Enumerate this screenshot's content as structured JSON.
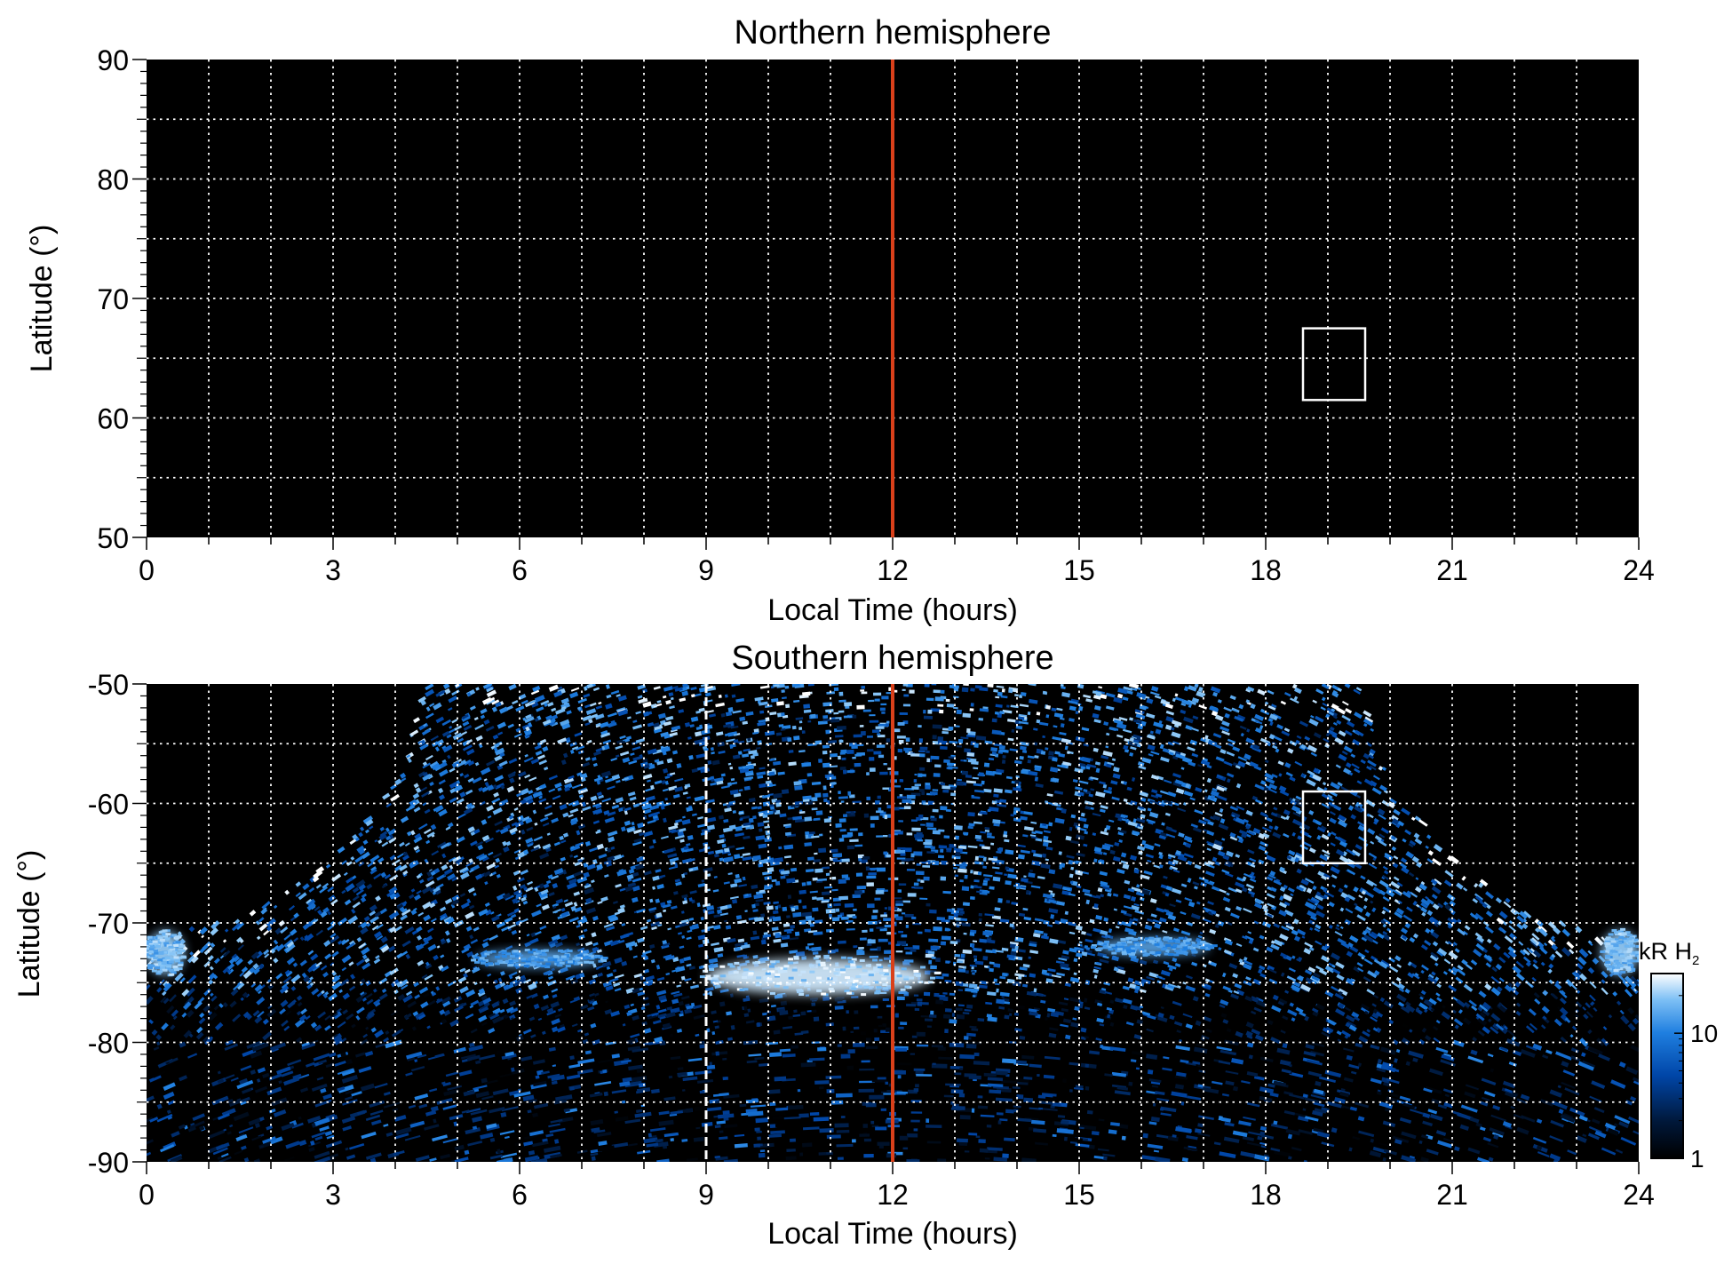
{
  "colors": {
    "background": "#000000",
    "grid": "#ffffff",
    "noon_line": "#d9401a",
    "roi_box": "#ffffff",
    "colormap": [
      "#000000",
      "#00183a",
      "#0046a8",
      "#1f7fe0",
      "#7ec0f5",
      "#ffffff"
    ]
  },
  "chart_data": [
    {
      "type": "heatmap",
      "title": "Northern hemisphere",
      "xlabel": "Local Time (hours)",
      "ylabel": "Latitude (°)",
      "xlim": [
        0,
        24
      ],
      "ylim": [
        50,
        90
      ],
      "x_ticks": [
        0,
        3,
        6,
        9,
        12,
        15,
        18,
        21,
        24
      ],
      "y_ticks": [
        50,
        60,
        70,
        80,
        90
      ],
      "grid": true,
      "grid_style": "dotted white, every 1 hour and every 5 degrees",
      "field": "empty (no emission)",
      "noon_line_x": 12,
      "roi_box": {
        "x": [
          18.6,
          19.6
        ],
        "y": [
          61.5,
          67.5
        ]
      }
    },
    {
      "type": "heatmap",
      "title": "Southern hemisphere",
      "xlabel": "Local Time (hours)",
      "ylabel": "Latitude (°)",
      "xlim": [
        0,
        24
      ],
      "ylim": [
        -90,
        -50
      ],
      "x_ticks": [
        0,
        3,
        6,
        9,
        12,
        15,
        18,
        21,
        24
      ],
      "y_ticks": [
        -50,
        -60,
        -70,
        -80,
        -90
      ],
      "grid": true,
      "grid_style": "dotted white, every 1 hour and every 5 degrees",
      "noon_line_x": 12,
      "dashed_line_x": 9,
      "roi_box": {
        "x": [
          18.6,
          19.6
        ],
        "y": [
          -65,
          -59
        ]
      },
      "coverage": {
        "description": "observed region bounded by curve; black (no data) above it",
        "boundary": [
          {
            "x": 0,
            "y": -71
          },
          {
            "x": 1,
            "y": -70.2
          },
          {
            "x": 2,
            "y": -68.2
          },
          {
            "x": 3,
            "y": -64.5
          },
          {
            "x": 4,
            "y": -58
          },
          {
            "x": 4.5,
            "y": -50
          },
          {
            "x": 19.5,
            "y": -50
          },
          {
            "x": 20,
            "y": -58
          },
          {
            "x": 21,
            "y": -64.5
          },
          {
            "x": 22,
            "y": -68.2
          },
          {
            "x": 23,
            "y": -70.2
          },
          {
            "x": 24,
            "y": -71
          }
        ]
      },
      "emission_features": [
        {
          "name": "bright oval",
          "x_center": 10.8,
          "y_center": -74.5,
          "x_halfwidth": 1.8,
          "y_halfwidth": 1.5,
          "level_kR": 25
        },
        {
          "name": "arc left",
          "x_center": 6.3,
          "y_center": -73.0,
          "x_halfwidth": 1.0,
          "y_halfwidth": 0.7,
          "level_kR": 15
        },
        {
          "name": "arc right",
          "x_center": 16.2,
          "y_center": -72.0,
          "x_halfwidth": 0.9,
          "y_halfwidth": 0.7,
          "level_kR": 15
        },
        {
          "name": "edge band left",
          "x_center": 0.3,
          "y_center": -72.5,
          "x_halfwidth": 0.3,
          "y_halfwidth": 1.8,
          "level_kR": 20
        },
        {
          "name": "edge band right",
          "x_center": 23.7,
          "y_center": -72.5,
          "x_halfwidth": 0.3,
          "y_halfwidth": 1.8,
          "level_kR": 20
        }
      ],
      "colorbar": {
        "label_main": "kR H",
        "label_sub": "2",
        "scale": "log",
        "range": [
          1,
          30
        ],
        "ticks": [
          1,
          10
        ]
      }
    }
  ]
}
